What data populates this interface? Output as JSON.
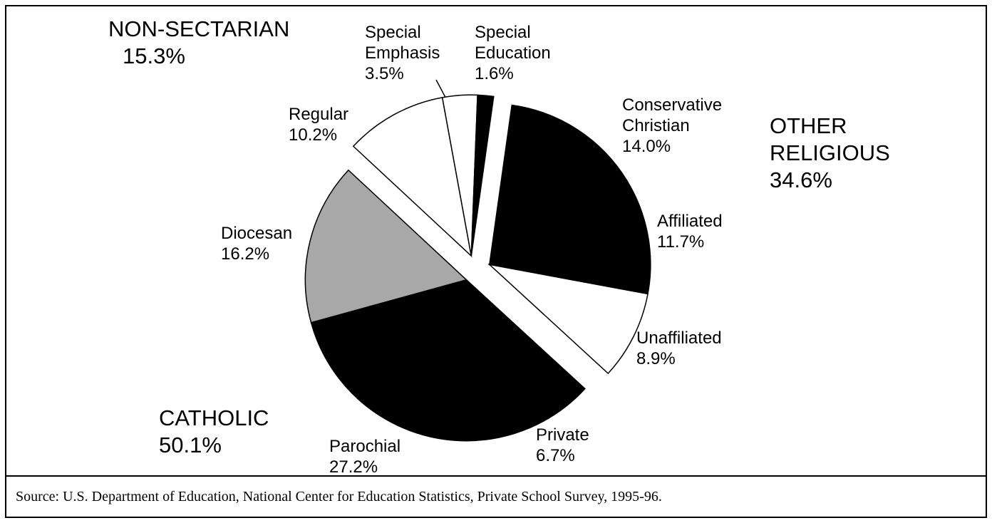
{
  "chart_data": {
    "type": "pie",
    "categories": [
      "Conservative Christian",
      "Affiliated",
      "Unaffiliated",
      "Private",
      "Parochial",
      "Diocesan",
      "Regular",
      "Special Emphasis",
      "Special Education"
    ],
    "values": [
      14.0,
      11.7,
      8.9,
      6.7,
      27.2,
      16.2,
      10.2,
      3.5,
      1.6
    ],
    "value_labels": [
      "14.0%",
      "11.7%",
      "8.9%",
      "6.7%",
      "27.2%",
      "16.2%",
      "10.2%",
      "3.5%",
      "1.6%"
    ],
    "colors": [
      "#000000",
      "#000000",
      "#ffffff",
      "#000000",
      "#000000",
      "#a8a8a8",
      "#ffffff",
      "#ffffff",
      "#000000"
    ],
    "slice_group": [
      0,
      0,
      0,
      1,
      1,
      1,
      2,
      2,
      2
    ],
    "groups": [
      {
        "name": "OTHER RELIGIOUS",
        "value": 34.6,
        "value_label": "34.6%"
      },
      {
        "name": "CATHOLIC",
        "value": 50.1,
        "value_label": "50.1%"
      },
      {
        "name": "NON-SECTARIAN",
        "value": 15.3,
        "value_label": "15.3%"
      }
    ],
    "source": "Source:  U.S. Department of Education, National Center for Education Statistics, Private School Survey, 1995-96."
  }
}
